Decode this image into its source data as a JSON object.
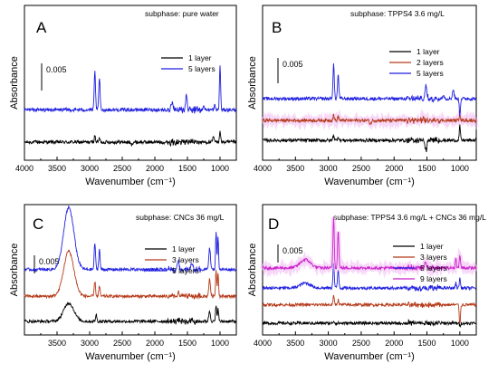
{
  "chart_data": [
    {
      "type": "line",
      "panel": "A",
      "subphase": "subphase: pure water",
      "xlabel": "Wavenumber (cm⁻¹)",
      "ylabel": "Absorbance",
      "xlim": [
        4000,
        750
      ],
      "x_reversed": true,
      "xticks": [
        4000,
        3500,
        3000,
        2500,
        2000,
        1500,
        1000
      ],
      "scale_bar": "0.005",
      "series": [
        {
          "name": "1 layer",
          "color": "#000000",
          "offset": 0.0,
          "peaks": [
            [
              2920,
              0.0016
            ],
            [
              2850,
              0.001
            ],
            [
              2360,
              -0.0008
            ],
            [
              1660,
              0.0004
            ],
            [
              1510,
              0.0003
            ],
            [
              1100,
              0.0012
            ],
            [
              1000,
              0.0032
            ]
          ]
        },
        {
          "name": "5 layers",
          "color": "#1f1fe0",
          "offset": 0.0085,
          "peaks": [
            [
              2920,
              0.01
            ],
            [
              2850,
              0.0085
            ],
            [
              1735,
              0.0015
            ],
            [
              1515,
              0.004
            ],
            [
              1250,
              0.001
            ],
            [
              1080,
              0.0012
            ],
            [
              1000,
              0.012
            ]
          ]
        }
      ]
    },
    {
      "type": "line",
      "panel": "B",
      "subphase": "subphase: TPPS4 3.6 mg/L",
      "xlabel": "Wavenumber (cm⁻¹)",
      "ylabel": "Absorbance",
      "xlim": [
        4000,
        750
      ],
      "x_reversed": true,
      "xticks": [
        4000,
        3500,
        3000,
        2500,
        2000,
        1500,
        1000
      ],
      "scale_bar": "0.005",
      "series": [
        {
          "name": "1 layer",
          "color": "#000000",
          "offset": 0.0,
          "peaks": [
            [
              2920,
              0.0015
            ],
            [
              2850,
              0.001
            ],
            [
              1515,
              -0.003
            ],
            [
              1000,
              0.004
            ]
          ]
        },
        {
          "name": "2 layers",
          "color": "#b53a1a",
          "offset": 0.0055,
          "peaks": [
            [
              2920,
              0.0015
            ],
            [
              2850,
              0.001
            ],
            [
              2360,
              -0.001
            ],
            [
              1000,
              0.002
            ]
          ]
        },
        {
          "name": "5 layers",
          "color": "#1f1fe0",
          "offset": 0.0115,
          "peaks": [
            [
              2920,
              0.0095
            ],
            [
              2850,
              0.0065
            ],
            [
              1515,
              0.0035
            ],
            [
              1250,
              0.0012
            ],
            [
              1100,
              0.0025
            ],
            [
              1000,
              -0.0045
            ]
          ]
        }
      ]
    },
    {
      "type": "line",
      "panel": "C",
      "subphase": "subphase: CNCs 36 mg/L",
      "xlabel": "Wavenumber (cm⁻¹)",
      "ylabel": "Absorbance",
      "xlim": [
        4000,
        750
      ],
      "x_reversed": true,
      "xticks": [
        3500,
        3000,
        2500,
        2000,
        1500,
        1000
      ],
      "scale_bar": "0.005",
      "series": [
        {
          "name": "1 layer",
          "color": "#000000",
          "offset": 0.0,
          "peaks": [
            [
              3320,
              0.0055
            ],
            [
              2900,
              0.002
            ],
            [
              1640,
              0.0005
            ],
            [
              1430,
              0.0008
            ],
            [
              1160,
              0.003
            ],
            [
              1060,
              0.0045
            ],
            [
              1030,
              0.004
            ]
          ]
        },
        {
          "name": "3 layers",
          "color": "#b53a1a",
          "offset": 0.0075,
          "peaks": [
            [
              3320,
              0.0135
            ],
            [
              2920,
              0.0045
            ],
            [
              2850,
              0.003
            ],
            [
              1640,
              0.001
            ],
            [
              1160,
              0.005
            ],
            [
              1060,
              0.008
            ],
            [
              1030,
              0.007
            ]
          ]
        },
        {
          "name": "5 layers",
          "color": "#1f1fe0",
          "offset": 0.0155,
          "peaks": [
            [
              3320,
              0.0185
            ],
            [
              2920,
              0.008
            ],
            [
              2850,
              0.006
            ],
            [
              1640,
              0.003
            ],
            [
              1430,
              0.002
            ],
            [
              1160,
              0.0065
            ],
            [
              1060,
              0.0115
            ],
            [
              1030,
              0.0095
            ]
          ]
        }
      ]
    },
    {
      "type": "line",
      "panel": "D",
      "subphase": "subphase: TPPS4 3.6 mg/L + CNCs 36 mg/L",
      "xlabel": "Wavenumber (cm⁻¹)",
      "ylabel": "Absorbance",
      "xlim": [
        4000,
        750
      ],
      "x_reversed": true,
      "xticks": [
        4000,
        3500,
        3000,
        2500,
        2000,
        1500,
        1000
      ],
      "scale_bar": "0.005",
      "series": [
        {
          "name": "1 layer",
          "color": "#000000",
          "offset": 0.0,
          "peaks": [
            [
              2920,
              0.0006
            ],
            [
              1000,
              -0.0008
            ]
          ]
        },
        {
          "name": "3 layers",
          "color": "#b53a1a",
          "offset": 0.0055,
          "peaks": [
            [
              2920,
              0.0025
            ],
            [
              2850,
              0.0015
            ],
            [
              1000,
              -0.006
            ]
          ]
        },
        {
          "name": "5 layers",
          "color": "#1f1fe0",
          "offset": 0.0105,
          "peaks": [
            [
              3350,
              0.0015
            ],
            [
              2920,
              0.0075
            ],
            [
              2850,
              0.0055
            ],
            [
              1060,
              0.0015
            ],
            [
              1000,
              0.003
            ]
          ]
        },
        {
          "name": "9 layers",
          "color": "#cc22cc",
          "offset": 0.0165,
          "peaks": [
            [
              3350,
              0.0025
            ],
            [
              2920,
              0.015
            ],
            [
              2850,
              0.011
            ],
            [
              1515,
              0.002
            ],
            [
              1060,
              0.003
            ],
            [
              1000,
              0.004
            ]
          ]
        }
      ]
    }
  ]
}
